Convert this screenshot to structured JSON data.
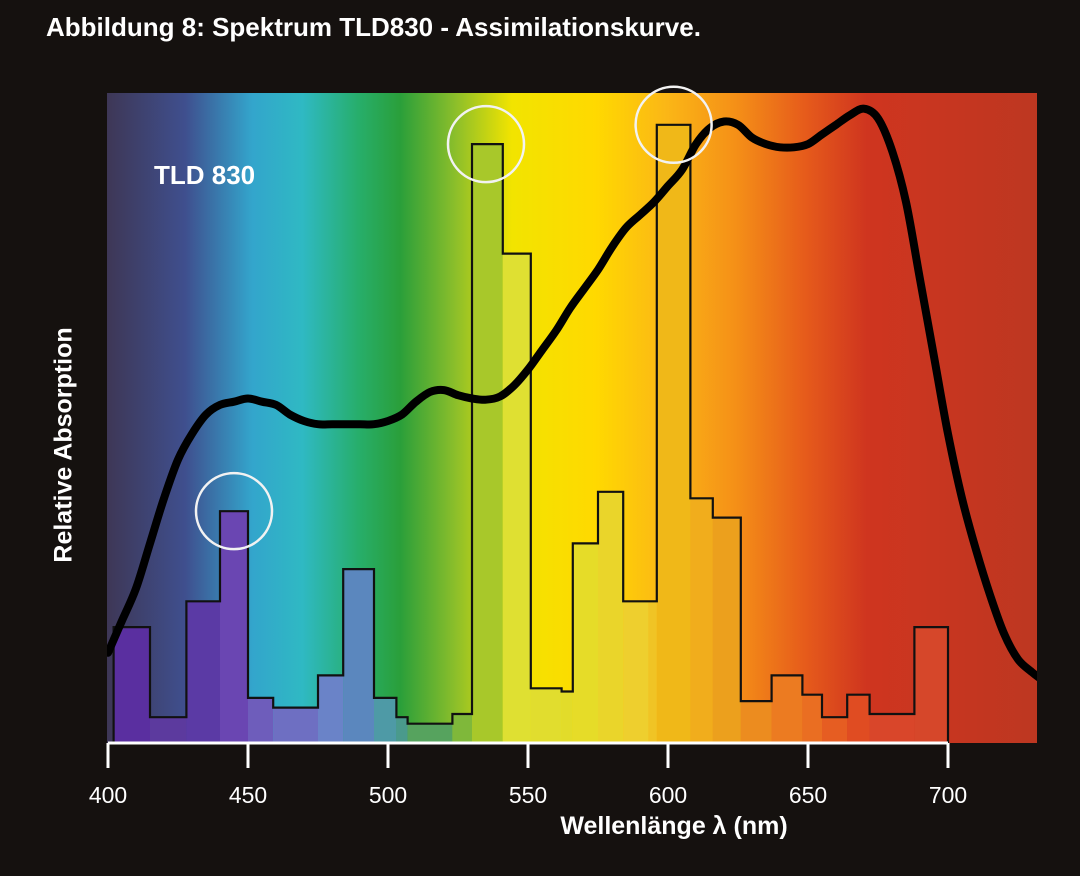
{
  "title": "Abbildung 8: Spektrum TLD830 - Assimilationskurve.",
  "chart_data": {
    "type": "bar",
    "title": "Abbildung 8: Spektrum TLD830 - Assimilationskurve.",
    "xlabel": "Wellenlänge λ (nm)",
    "ylabel": "Relative Absorption",
    "annotation": "TLD 830",
    "xlim": [
      400,
      733
    ],
    "ylim": [
      0,
      100
    ],
    "xticks": [
      400,
      450,
      500,
      550,
      600,
      650,
      700
    ],
    "grid": false,
    "colors": {
      "background": "#15110f",
      "axis": "#ffffff",
      "curve": "#000000",
      "bar_outline": "#111111",
      "highlight_circle": "#f2f2f2"
    },
    "spectrum_gradient": [
      {
        "nm": 400,
        "color": "#3e3756"
      },
      {
        "nm": 428,
        "color": "#3f4f8e"
      },
      {
        "nm": 452,
        "color": "#33a5cc"
      },
      {
        "nm": 470,
        "color": "#2fb9c3"
      },
      {
        "nm": 490,
        "color": "#27ae6b"
      },
      {
        "nm": 505,
        "color": "#2a9f3a"
      },
      {
        "nm": 525,
        "color": "#8dbf2a"
      },
      {
        "nm": 545,
        "color": "#f2e400"
      },
      {
        "nm": 575,
        "color": "#ffd900"
      },
      {
        "nm": 600,
        "color": "#fbb716"
      },
      {
        "nm": 625,
        "color": "#f59017"
      },
      {
        "nm": 650,
        "color": "#e65b1b"
      },
      {
        "nm": 672,
        "color": "#cf351f"
      },
      {
        "nm": 733,
        "color": "#bd3721"
      }
    ],
    "bars": [
      {
        "x0": 402,
        "x1": 415,
        "value": 18,
        "color": "#5a2fa0"
      },
      {
        "x0": 415,
        "x1": 428,
        "value": 4,
        "color": "#5c3a9e"
      },
      {
        "x0": 428,
        "x1": 440,
        "value": 22,
        "color": "#5b3aa5"
      },
      {
        "x0": 440,
        "x1": 450,
        "value": 36,
        "color": "#6a46b2"
      },
      {
        "x0": 450,
        "x1": 459,
        "value": 7,
        "color": "#6e5dbb"
      },
      {
        "x0": 459,
        "x1": 475,
        "value": 5.5,
        "color": "#6e6fc2"
      },
      {
        "x0": 475,
        "x1": 484,
        "value": 10.5,
        "color": "#6a83c8"
      },
      {
        "x0": 484,
        "x1": 495,
        "value": 27,
        "color": "#5b87be"
      },
      {
        "x0": 495,
        "x1": 503,
        "value": 7,
        "color": "#4e9aa6"
      },
      {
        "x0": 503,
        "x1": 507,
        "value": 4,
        "color": "#4a9a8c"
      },
      {
        "x0": 507,
        "x1": 523,
        "value": 3,
        "color": "#56a35e"
      },
      {
        "x0": 523,
        "x1": 530,
        "value": 4.5,
        "color": "#7fb83a"
      },
      {
        "x0": 530,
        "x1": 541,
        "value": 93,
        "color": "#a8c82a"
      },
      {
        "x0": 541,
        "x1": 551,
        "value": 76,
        "color": "#dfe032"
      },
      {
        "x0": 551,
        "x1": 562,
        "value": 8.5,
        "color": "#e1dd2e"
      },
      {
        "x0": 562,
        "x1": 566,
        "value": 8,
        "color": "#e2dc2a"
      },
      {
        "x0": 566,
        "x1": 575,
        "value": 31,
        "color": "#e6dc28"
      },
      {
        "x0": 575,
        "x1": 584,
        "value": 39,
        "color": "#ead52a"
      },
      {
        "x0": 584,
        "x1": 593,
        "value": 22,
        "color": "#eecf2e"
      },
      {
        "x0": 593,
        "x1": 596,
        "value": 22,
        "color": "#f0c425"
      },
      {
        "x0": 596,
        "x1": 608,
        "value": 96,
        "color": "#f0b818"
      },
      {
        "x0": 608,
        "x1": 616,
        "value": 38,
        "color": "#f1ad1c"
      },
      {
        "x0": 616,
        "x1": 626,
        "value": 35,
        "color": "#eca01d"
      },
      {
        "x0": 626,
        "x1": 637,
        "value": 6.5,
        "color": "#ec8c1f"
      },
      {
        "x0": 637,
        "x1": 648,
        "value": 10.5,
        "color": "#ec7b21"
      },
      {
        "x0": 648,
        "x1": 655,
        "value": 7.5,
        "color": "#ea6e22"
      },
      {
        "x0": 655,
        "x1": 664,
        "value": 4,
        "color": "#e65d22"
      },
      {
        "x0": 664,
        "x1": 672,
        "value": 7.5,
        "color": "#e04c22"
      },
      {
        "x0": 672,
        "x1": 688,
        "value": 4.5,
        "color": "#d9462a"
      },
      {
        "x0": 688,
        "x1": 700,
        "value": 18,
        "color": "#d6472a"
      }
    ],
    "series": [
      {
        "type": "line",
        "x": [
          400,
          405,
          410,
          415,
          420,
          425,
          430,
          435,
          440,
          445,
          450,
          455,
          460,
          465,
          470,
          475,
          480,
          485,
          490,
          495,
          500,
          505,
          510,
          515,
          520,
          525,
          530,
          535,
          540,
          545,
          550,
          555,
          560,
          565,
          570,
          575,
          580,
          585,
          590,
          595,
          600,
          605,
          610,
          615,
          620,
          625,
          630,
          635,
          640,
          645,
          650,
          655,
          660,
          665,
          670,
          675,
          680,
          685,
          690,
          695,
          700,
          705,
          710,
          715,
          720,
          725,
          730,
          733
        ],
        "values": [
          14,
          19,
          24,
          31,
          38,
          44,
          48,
          51,
          52.5,
          53,
          53.5,
          53,
          52.5,
          51,
          50,
          49.5,
          49.5,
          49.5,
          49.5,
          49.5,
          50,
          51,
          53,
          54.5,
          54.8,
          54,
          53.5,
          53.3,
          53.8,
          55.5,
          58,
          61,
          64,
          67.5,
          70.5,
          73.5,
          77,
          80,
          82,
          84,
          86.5,
          89,
          93,
          95.5,
          96.5,
          96,
          94,
          93,
          92.5,
          92.5,
          93,
          94.5,
          96,
          97.5,
          98.5,
          97,
          92,
          84,
          72,
          60,
          48,
          38,
          30,
          23,
          17,
          13,
          11,
          10
        ]
      }
    ],
    "highlight_circles": [
      {
        "x": 445,
        "value": 36
      },
      {
        "x": 535,
        "value": 93
      },
      {
        "x": 602,
        "value": 96
      }
    ]
  }
}
